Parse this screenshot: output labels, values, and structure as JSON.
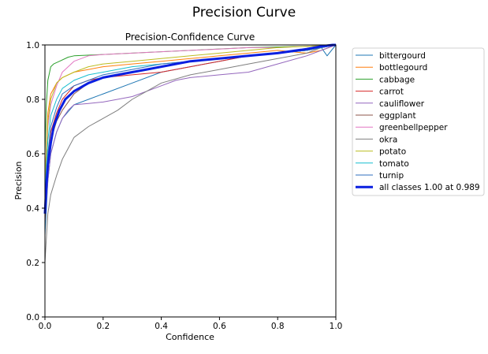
{
  "page_title": "Precision Curve",
  "chart_data": {
    "type": "line",
    "title": "Precision-Confidence Curve",
    "xlabel": "Confidence",
    "ylabel": "Precision",
    "xlim": [
      0.0,
      1.0
    ],
    "ylim": [
      0.0,
      1.0
    ],
    "xticks": [
      "0.0",
      "0.2",
      "0.4",
      "0.6",
      "0.8",
      "1.0"
    ],
    "yticks": [
      "0.0",
      "0.2",
      "0.4",
      "0.6",
      "0.8",
      "1.0"
    ],
    "grid": false,
    "legend_position": "outside-right",
    "series": [
      {
        "name": "bittergourd",
        "color": "#1f77b4",
        "width": 1,
        "x": [
          0.0,
          0.01,
          0.02,
          0.04,
          0.06,
          0.1,
          0.15,
          0.2,
          0.3,
          0.4,
          0.5,
          0.6,
          0.7,
          0.8,
          0.9,
          0.95,
          0.97,
          1.0
        ],
        "y": [
          0.3,
          0.5,
          0.6,
          0.68,
          0.73,
          0.78,
          0.8,
          0.82,
          0.86,
          0.9,
          0.92,
          0.94,
          0.96,
          0.97,
          0.98,
          0.99,
          0.96,
          1.0
        ]
      },
      {
        "name": "bottlegourd",
        "color": "#ff7f0e",
        "width": 1,
        "x": [
          0.0,
          0.01,
          0.02,
          0.04,
          0.06,
          0.1,
          0.15,
          0.2,
          0.3,
          0.4,
          0.5,
          0.6,
          0.7,
          0.8,
          0.9,
          0.95,
          1.0
        ],
        "y": [
          0.5,
          0.75,
          0.82,
          0.86,
          0.88,
          0.9,
          0.91,
          0.92,
          0.93,
          0.94,
          0.95,
          0.96,
          0.97,
          0.98,
          0.97,
          0.98,
          1.0
        ]
      },
      {
        "name": "cabbage",
        "color": "#2ca02c",
        "width": 1,
        "x": [
          0.0,
          0.005,
          0.01,
          0.02,
          0.03,
          0.05,
          0.08,
          0.1,
          0.2,
          0.3,
          0.5,
          0.7,
          0.9,
          1.0
        ],
        "y": [
          0.6,
          0.78,
          0.87,
          0.92,
          0.93,
          0.94,
          0.955,
          0.96,
          0.965,
          0.97,
          0.98,
          0.99,
          0.995,
          1.0
        ]
      },
      {
        "name": "carrot",
        "color": "#d62728",
        "width": 1,
        "x": [
          0.0,
          0.01,
          0.02,
          0.04,
          0.06,
          0.1,
          0.15,
          0.2,
          0.3,
          0.4,
          0.5,
          0.6,
          0.7,
          0.8,
          0.9,
          1.0
        ],
        "y": [
          0.4,
          0.6,
          0.68,
          0.75,
          0.8,
          0.85,
          0.87,
          0.88,
          0.89,
          0.9,
          0.92,
          0.94,
          0.96,
          0.97,
          0.98,
          1.0
        ]
      },
      {
        "name": "cauliflower",
        "color": "#9467bd",
        "width": 1,
        "x": [
          0.0,
          0.01,
          0.02,
          0.04,
          0.06,
          0.08,
          0.1,
          0.15,
          0.2,
          0.3,
          0.35,
          0.4,
          0.45,
          0.5,
          0.6,
          0.7,
          0.8,
          0.9,
          0.95,
          1.0
        ],
        "y": [
          0.35,
          0.5,
          0.6,
          0.68,
          0.73,
          0.76,
          0.78,
          0.785,
          0.79,
          0.81,
          0.83,
          0.85,
          0.87,
          0.88,
          0.89,
          0.9,
          0.93,
          0.96,
          0.98,
          1.0
        ]
      },
      {
        "name": "eggplant",
        "color": "#8c564b",
        "width": 1,
        "x": [
          0.0,
          0.01,
          0.02,
          0.04,
          0.06,
          0.1,
          0.15,
          0.2,
          0.3,
          0.4,
          0.5,
          0.6,
          0.7,
          0.8,
          0.9,
          1.0
        ],
        "y": [
          0.35,
          0.55,
          0.65,
          0.72,
          0.76,
          0.82,
          0.86,
          0.88,
          0.9,
          0.92,
          0.94,
          0.95,
          0.96,
          0.97,
          0.98,
          1.0
        ]
      },
      {
        "name": "greenbellpepper",
        "color": "#e377c2",
        "width": 1,
        "x": [
          0.0,
          0.01,
          0.02,
          0.04,
          0.06,
          0.1,
          0.15,
          0.2,
          0.3,
          0.4,
          0.5,
          0.6,
          0.7,
          0.8,
          0.9,
          1.0
        ],
        "y": [
          0.5,
          0.7,
          0.78,
          0.85,
          0.9,
          0.94,
          0.96,
          0.965,
          0.97,
          0.975,
          0.98,
          0.985,
          0.99,
          0.99,
          0.995,
          1.0
        ]
      },
      {
        "name": "okra",
        "color": "#7f7f7f",
        "width": 1,
        "x": [
          0.0,
          0.01,
          0.02,
          0.04,
          0.06,
          0.08,
          0.1,
          0.15,
          0.2,
          0.25,
          0.3,
          0.35,
          0.4,
          0.5,
          0.6,
          0.7,
          0.8,
          0.9,
          0.95,
          1.0
        ],
        "y": [
          0.2,
          0.38,
          0.45,
          0.52,
          0.58,
          0.62,
          0.66,
          0.7,
          0.73,
          0.76,
          0.8,
          0.83,
          0.86,
          0.89,
          0.91,
          0.93,
          0.95,
          0.97,
          0.99,
          1.0
        ]
      },
      {
        "name": "potato",
        "color": "#bcbd22",
        "width": 1,
        "x": [
          0.0,
          0.01,
          0.02,
          0.04,
          0.06,
          0.1,
          0.15,
          0.2,
          0.3,
          0.4,
          0.5,
          0.6,
          0.7,
          0.8,
          0.9,
          1.0
        ],
        "y": [
          0.5,
          0.72,
          0.8,
          0.86,
          0.88,
          0.9,
          0.92,
          0.93,
          0.94,
          0.95,
          0.96,
          0.97,
          0.98,
          0.99,
          0.995,
          1.0
        ]
      },
      {
        "name": "tomato",
        "color": "#17becf",
        "width": 1,
        "x": [
          0.0,
          0.01,
          0.02,
          0.04,
          0.06,
          0.1,
          0.15,
          0.2,
          0.3,
          0.4,
          0.5,
          0.6,
          0.7,
          0.8,
          0.9,
          1.0
        ],
        "y": [
          0.45,
          0.65,
          0.74,
          0.8,
          0.84,
          0.87,
          0.89,
          0.9,
          0.92,
          0.93,
          0.94,
          0.95,
          0.96,
          0.97,
          0.98,
          1.0
        ]
      },
      {
        "name": "turnip",
        "color": "#2f6fbf",
        "width": 1,
        "x": [
          0.0,
          0.01,
          0.02,
          0.04,
          0.06,
          0.1,
          0.15,
          0.2,
          0.3,
          0.4,
          0.5,
          0.6,
          0.7,
          0.8,
          0.9,
          1.0
        ],
        "y": [
          0.4,
          0.6,
          0.7,
          0.77,
          0.82,
          0.85,
          0.87,
          0.89,
          0.91,
          0.93,
          0.94,
          0.95,
          0.96,
          0.97,
          0.98,
          1.0
        ]
      },
      {
        "name": "all classes 1.00 at 0.989",
        "color": "#0a1fe0",
        "width": 3,
        "x": [
          0.0,
          0.005,
          0.01,
          0.02,
          0.03,
          0.05,
          0.07,
          0.1,
          0.15,
          0.2,
          0.25,
          0.3,
          0.35,
          0.4,
          0.5,
          0.6,
          0.7,
          0.8,
          0.9,
          0.95,
          0.989,
          1.0
        ],
        "y": [
          0.38,
          0.48,
          0.56,
          0.64,
          0.7,
          0.76,
          0.8,
          0.83,
          0.86,
          0.88,
          0.89,
          0.9,
          0.91,
          0.92,
          0.94,
          0.95,
          0.96,
          0.97,
          0.985,
          0.995,
          1.0,
          1.0
        ]
      }
    ]
  }
}
